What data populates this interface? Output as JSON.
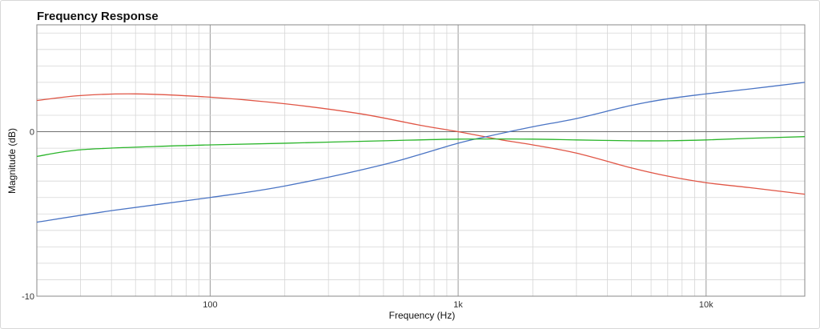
{
  "title": "Frequency Response",
  "colors": {
    "grid_major": "#9a9a9a",
    "grid_minor": "#d6d6d6",
    "zero_line": "#6f6f6f",
    "plot_border": "#888888"
  },
  "chart_data": {
    "type": "line",
    "title": "Frequency Response",
    "xlabel": "Frequency (Hz)",
    "ylabel": "Magnitude (dB)",
    "xscale": "log",
    "xlim": [
      20,
      25000
    ],
    "ylim": [
      -10,
      6.5
    ],
    "grid": true,
    "x_tick_labels": [
      {
        "value": 100,
        "label": "100"
      },
      {
        "value": 1000,
        "label": "1k"
      },
      {
        "value": 10000,
        "label": "10k"
      }
    ],
    "y_tick_labels": [
      {
        "value": 0,
        "label": "0"
      },
      {
        "value": -10,
        "label": "-10"
      }
    ],
    "series": [
      {
        "color": "#e05545",
        "x": [
          20,
          30,
          50,
          100,
          200,
          400,
          700,
          1000,
          1500,
          2000,
          3000,
          5000,
          7000,
          10000,
          15000,
          25000
        ],
        "y": [
          1.9,
          2.2,
          2.3,
          2.1,
          1.7,
          1.1,
          0.4,
          0.0,
          -0.5,
          -0.8,
          -1.3,
          -2.2,
          -2.7,
          -3.1,
          -3.4,
          -3.8
        ]
      },
      {
        "color": "#4a74c4",
        "x": [
          20,
          40,
          100,
          200,
          500,
          1000,
          1300,
          2000,
          3000,
          5000,
          7000,
          10000,
          15000,
          25000
        ],
        "y": [
          -5.5,
          -4.8,
          -4.0,
          -3.3,
          -2.0,
          -0.7,
          -0.3,
          0.3,
          0.8,
          1.6,
          2.0,
          2.3,
          2.6,
          3.0
        ]
      },
      {
        "color": "#2ab52a",
        "x": [
          20,
          30,
          60,
          100,
          200,
          500,
          1000,
          2000,
          3000,
          5000,
          7000,
          10000,
          15000,
          25000
        ],
        "y": [
          -1.5,
          -1.1,
          -0.9,
          -0.8,
          -0.7,
          -0.55,
          -0.45,
          -0.45,
          -0.5,
          -0.55,
          -0.55,
          -0.5,
          -0.4,
          -0.3
        ]
      }
    ]
  }
}
